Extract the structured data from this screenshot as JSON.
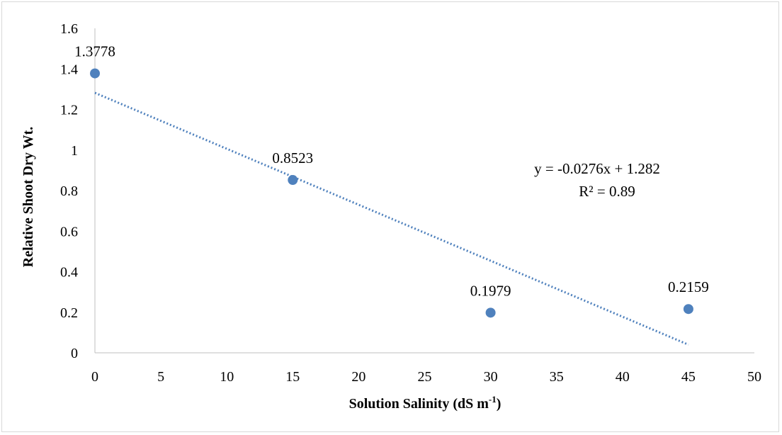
{
  "chart_data": {
    "type": "scatter",
    "x": [
      0,
      15,
      30,
      45
    ],
    "y": [
      1.3778,
      0.8523,
      0.1979,
      0.2159
    ],
    "data_labels": [
      "1.3778",
      "0.8523",
      "0.1979",
      "0.2159"
    ],
    "xlabel_main": "Solution Salinity (dS m",
    "xlabel_sup": "-1",
    "xlabel_end": ")",
    "ylabel": "Relative Shoot Dry Wt.",
    "xlim": [
      0,
      50
    ],
    "ylim": [
      0,
      1.6
    ],
    "x_ticks": [
      "0",
      "5",
      "10",
      "15",
      "20",
      "25",
      "30",
      "35",
      "40",
      "45",
      "50"
    ],
    "y_ticks": [
      "0",
      "0.2",
      "0.4",
      "0.6",
      "0.8",
      "1",
      "1.2",
      "1.4",
      "1.6"
    ],
    "grid": false,
    "marker_color": "#4f81bd",
    "trendline": {
      "type": "linear",
      "slope": -0.0276,
      "intercept": 1.282,
      "x_range": [
        0,
        45
      ],
      "style": "dotted",
      "color": "#4f81bd",
      "equation": "y = -0.0276x + 1.282",
      "r2": "R² = 0.89"
    }
  }
}
